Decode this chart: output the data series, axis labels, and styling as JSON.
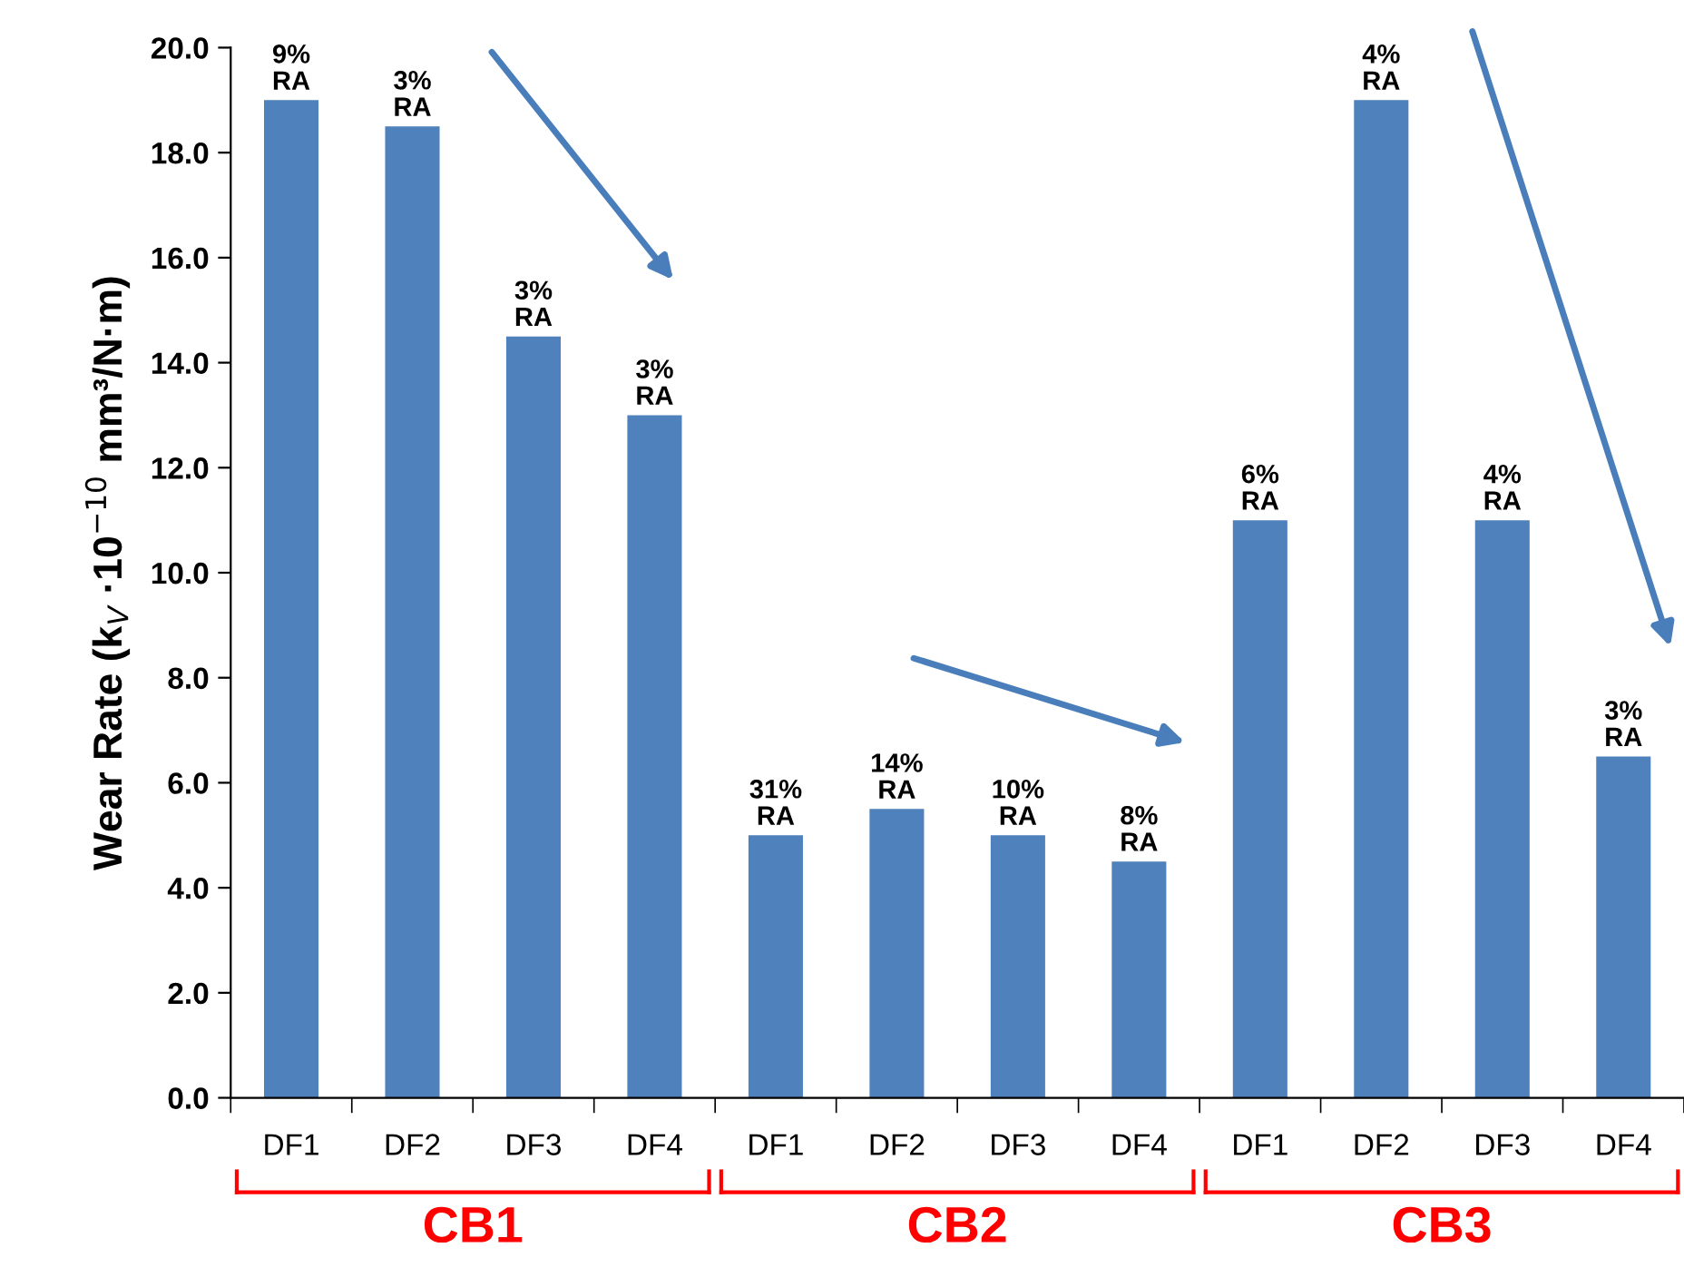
{
  "chart_data": {
    "type": "bar",
    "ylabel": "Wear Rate (k$_{V}$ ·10$^{−10}$ mm³/N·m)",
    "categories": [
      "DF1",
      "DF2",
      "DF3",
      "DF4",
      "DF1",
      "DF2",
      "DF3",
      "DF4",
      "DF1",
      "DF2",
      "DF3",
      "DF4"
    ],
    "values": [
      19.0,
      18.5,
      14.5,
      13.0,
      5.0,
      5.5,
      5.0,
      4.5,
      11.0,
      19.0,
      11.0,
      6.5
    ],
    "color": "#4f81bd",
    "ylim": [
      0,
      20
    ],
    "yticks": [
      {
        "value": 0,
        "label": "0.0"
      },
      {
        "value": 2,
        "label": "2.0"
      },
      {
        "value": 4,
        "label": "4.0"
      },
      {
        "value": 6,
        "label": "6.0"
      },
      {
        "value": 8,
        "label": "8.0"
      },
      {
        "value": 10,
        "label": "10.0"
      },
      {
        "value": 12,
        "label": "12.0"
      },
      {
        "value": 14,
        "label": "14.0"
      },
      {
        "value": 16,
        "label": "16.0"
      },
      {
        "value": 18,
        "label": "18.0"
      },
      {
        "value": 20,
        "label": "20.0"
      }
    ],
    "annotations": [
      "9%\nRA",
      "3%\nRA",
      "3%\nRA",
      "3%\nRA",
      "31%\nRA",
      "14%\nRA",
      "10%\nRA",
      "8%\nRA",
      "6%\nRA",
      "4%\nRA",
      "4%\nRA",
      "3%\nRA",
      "CB1",
      "CB2",
      "CB3"
    ],
    "grid": false,
    "legend": false
  }
}
